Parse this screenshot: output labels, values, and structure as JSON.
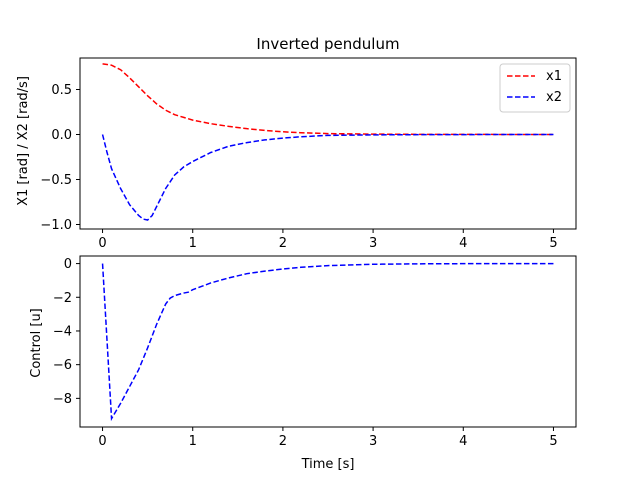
{
  "chart_data": [
    {
      "type": "line",
      "title": "Inverted pendulum",
      "xlabel": "",
      "ylabel": "X1 [rad] / X2 [rad/s]",
      "xlim": [
        -0.25,
        5.25
      ],
      "ylim": [
        -1.05,
        0.85
      ],
      "xticks": [
        0,
        1,
        2,
        3,
        4,
        5
      ],
      "xtick_labels": [
        "0",
        "1",
        "2",
        "3",
        "4",
        "5"
      ],
      "yticks": [
        -1.0,
        -0.5,
        0.0,
        0.5
      ],
      "ytick_labels": [
        "−1.0",
        "−0.5",
        "0.0",
        "0.5"
      ],
      "grid": false,
      "legend_position": "top-right",
      "series": [
        {
          "name": "x1",
          "color": "#ff0000",
          "dash": "dashed",
          "x": [
            0,
            0.1,
            0.2,
            0.3,
            0.4,
            0.5,
            0.6,
            0.7,
            0.8,
            0.9,
            1.0,
            1.2,
            1.4,
            1.6,
            1.8,
            2.0,
            2.2,
            2.5,
            3.0,
            3.5,
            4.0,
            4.5,
            5.0
          ],
          "y": [
            0.785,
            0.77,
            0.72,
            0.63,
            0.53,
            0.43,
            0.34,
            0.27,
            0.22,
            0.19,
            0.16,
            0.12,
            0.09,
            0.065,
            0.045,
            0.03,
            0.02,
            0.01,
            0.004,
            0.002,
            0.001,
            0.0005,
            0.0
          ]
        },
        {
          "name": "x2",
          "color": "#0000ff",
          "dash": "dashed",
          "x": [
            0,
            0.05,
            0.1,
            0.2,
            0.3,
            0.4,
            0.45,
            0.5,
            0.55,
            0.6,
            0.7,
            0.8,
            0.9,
            1.0,
            1.2,
            1.4,
            1.6,
            1.8,
            2.0,
            2.2,
            2.5,
            3.0,
            3.5,
            4.0,
            4.5,
            5.0
          ],
          "y": [
            0.0,
            -0.2,
            -0.38,
            -0.6,
            -0.78,
            -0.9,
            -0.94,
            -0.95,
            -0.9,
            -0.8,
            -0.6,
            -0.45,
            -0.36,
            -0.3,
            -0.2,
            -0.13,
            -0.09,
            -0.06,
            -0.04,
            -0.025,
            -0.01,
            -0.004,
            -0.002,
            -0.001,
            0.0,
            0.0
          ]
        }
      ]
    },
    {
      "type": "line",
      "title": "",
      "xlabel": "Time [s]",
      "ylabel": "Control [u]",
      "xlim": [
        -0.25,
        5.25
      ],
      "ylim": [
        -9.7,
        0.45
      ],
      "xticks": [
        0,
        1,
        2,
        3,
        4,
        5
      ],
      "xtick_labels": [
        "0",
        "1",
        "2",
        "3",
        "4",
        "5"
      ],
      "yticks": [
        -8,
        -6,
        -4,
        -2,
        0
      ],
      "ytick_labels": [
        "−8",
        "−6",
        "−4",
        "−2",
        "0"
      ],
      "grid": false,
      "series": [
        {
          "color": "#0000ff",
          "dash": "dashed",
          "x": [
            0,
            0.1,
            0.2,
            0.3,
            0.4,
            0.5,
            0.6,
            0.7,
            0.75,
            0.8,
            0.9,
            0.95,
            1.0,
            1.1,
            1.2,
            1.4,
            1.6,
            1.8,
            2.0,
            2.2,
            2.5,
            3.0,
            3.5,
            4.0,
            4.5,
            5.0
          ],
          "y": [
            0.0,
            -9.2,
            -8.3,
            -7.3,
            -6.3,
            -5.0,
            -3.6,
            -2.4,
            -2.05,
            -1.9,
            -1.75,
            -1.7,
            -1.55,
            -1.35,
            -1.15,
            -0.85,
            -0.6,
            -0.45,
            -0.32,
            -0.22,
            -0.12,
            -0.04,
            -0.015,
            -0.005,
            0.0,
            0.0
          ]
        }
      ]
    }
  ]
}
